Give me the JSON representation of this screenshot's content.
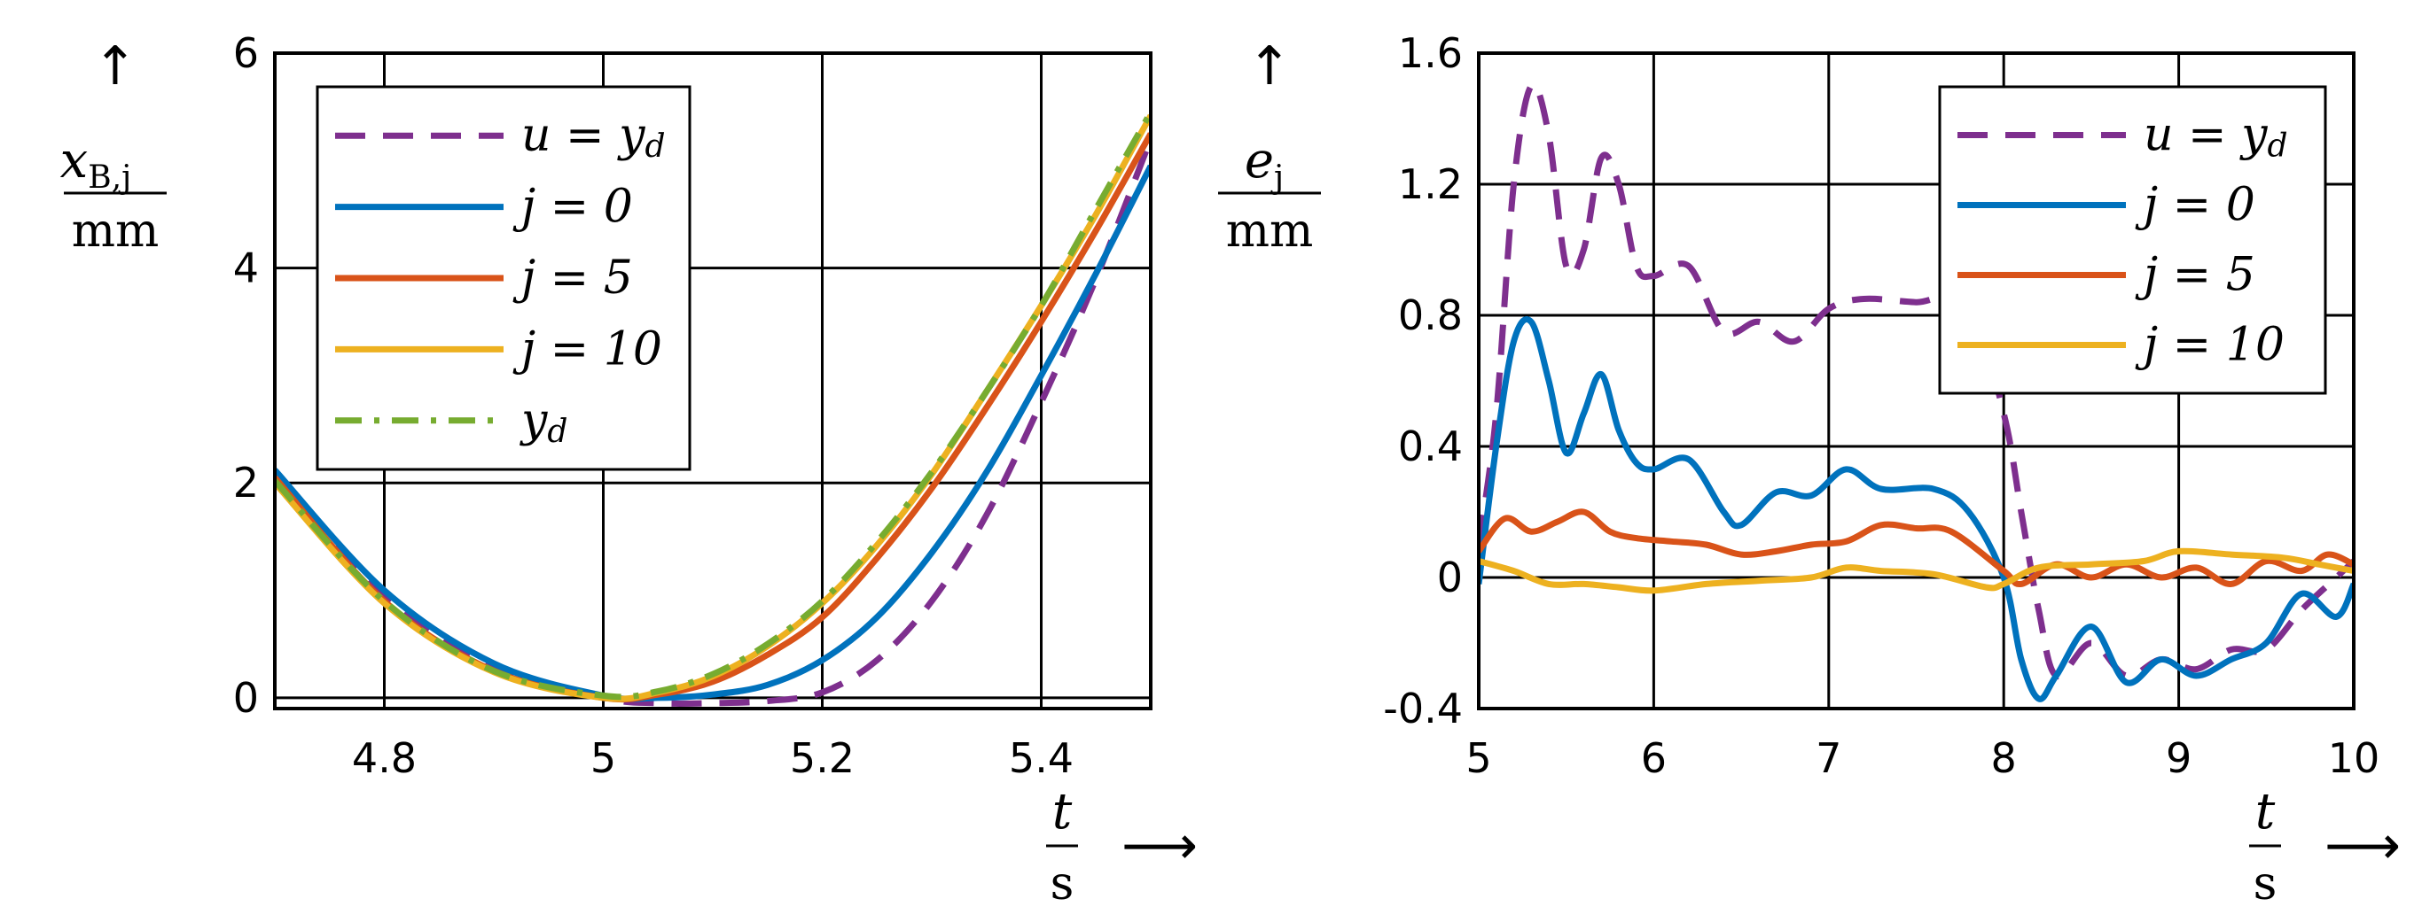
{
  "chart_data": [
    {
      "type": "line",
      "xlim": [
        4.7,
        5.5
      ],
      "ylim": [
        -0.1,
        6
      ],
      "xticks": [
        4.8,
        5,
        5.2,
        5.4
      ],
      "xtick_labels": [
        "4.8",
        "5",
        "5.2",
        "5.4"
      ],
      "yticks": [
        0,
        2,
        4,
        6
      ],
      "ytick_labels": [
        "0",
        "2",
        "4",
        "6"
      ],
      "ylabel_num": "x",
      "ylabel_sub": "B,j",
      "ylabel_den": "mm",
      "xlabel_num": "t",
      "xlabel_den": "s",
      "arrow_up": "↑",
      "arrow_right": "⟶",
      "grid": true,
      "legend_position": "top-left",
      "series": [
        {
          "name": "u = yd",
          "legend_main": "u = y",
          "legend_sub": "d",
          "color": "#7E2F8E",
          "dash": "dash",
          "x": [
            4.7,
            4.8,
            4.9,
            5.0,
            5.05,
            5.1,
            5.15,
            5.2,
            5.25,
            5.3,
            5.35,
            5.4,
            5.45,
            5.5
          ],
          "y": [
            2.1,
            0.95,
            0.3,
            0.0,
            -0.05,
            -0.05,
            -0.03,
            0.05,
            0.35,
            0.9,
            1.7,
            2.75,
            3.9,
            5.2
          ]
        },
        {
          "name": "j = 0",
          "legend_main": "j = 0",
          "legend_sub": "",
          "color": "#0072BD",
          "dash": "solid",
          "x": [
            4.7,
            4.8,
            4.9,
            5.0,
            5.05,
            5.1,
            5.15,
            5.2,
            5.25,
            5.3,
            5.35,
            5.4,
            5.45,
            5.5
          ],
          "y": [
            2.12,
            1.0,
            0.32,
            0.02,
            0.0,
            0.03,
            0.12,
            0.35,
            0.75,
            1.35,
            2.1,
            3.0,
            3.95,
            4.95
          ]
        },
        {
          "name": "j = 5",
          "legend_main": "j = 5",
          "legend_sub": "",
          "color": "#D95319",
          "dash": "solid",
          "x": [
            4.7,
            4.8,
            4.9,
            5.0,
            5.05,
            5.1,
            5.15,
            5.2,
            5.25,
            5.3,
            5.35,
            5.4,
            5.45,
            5.5
          ],
          "y": [
            2.05,
            0.9,
            0.25,
            0.0,
            0.03,
            0.15,
            0.4,
            0.75,
            1.3,
            1.95,
            2.7,
            3.5,
            4.35,
            5.25
          ]
        },
        {
          "name": "j = 10",
          "legend_main": "j = 10",
          "legend_sub": "",
          "color": "#EDB120",
          "dash": "solid",
          "x": [
            4.7,
            4.8,
            4.9,
            5.0,
            5.05,
            5.1,
            5.15,
            5.2,
            5.25,
            5.3,
            5.35,
            5.4,
            5.45,
            5.5
          ],
          "y": [
            2.0,
            0.88,
            0.24,
            0.0,
            0.05,
            0.2,
            0.48,
            0.88,
            1.42,
            2.08,
            2.85,
            3.65,
            4.5,
            5.42
          ]
        },
        {
          "name": "yd",
          "legend_main": "y",
          "legend_sub": "d",
          "color": "#77AC30",
          "dash": "dashdot",
          "x": [
            4.7,
            4.8,
            4.9,
            5.0,
            5.05,
            5.1,
            5.15,
            5.2,
            5.25,
            5.3,
            5.35,
            5.4,
            5.45,
            5.5
          ],
          "y": [
            2.02,
            0.9,
            0.25,
            0.02,
            0.06,
            0.22,
            0.5,
            0.9,
            1.45,
            2.1,
            2.85,
            3.65,
            4.55,
            5.45
          ]
        }
      ]
    },
    {
      "type": "line",
      "xlim": [
        5,
        10
      ],
      "ylim": [
        -0.4,
        1.6
      ],
      "xticks": [
        5,
        6,
        7,
        8,
        9,
        10
      ],
      "xtick_labels": [
        "5",
        "6",
        "7",
        "8",
        "9",
        "10"
      ],
      "yticks": [
        -0.4,
        0,
        0.4,
        0.8,
        1.2,
        1.6
      ],
      "ytick_labels": [
        "-0.4",
        "0",
        "0.4",
        "0.8",
        "1.2",
        "1.6"
      ],
      "ylabel_num": "e",
      "ylabel_sub": "j",
      "ylabel_den": "mm",
      "xlabel_num": "t",
      "xlabel_den": "s",
      "arrow_up": "↑",
      "arrow_right": "⟶",
      "grid": true,
      "legend_position": "top-right",
      "series": [
        {
          "name": "u = yd",
          "legend_main": "u = y",
          "legend_sub": "d",
          "color": "#7E2F8E",
          "dash": "dash",
          "x": [
            5.0,
            5.1,
            5.2,
            5.3,
            5.4,
            5.5,
            5.6,
            5.7,
            5.8,
            5.9,
            6.0,
            6.2,
            6.4,
            6.6,
            6.8,
            7.0,
            7.2,
            7.5,
            7.8,
            8.0,
            8.1,
            8.2,
            8.3,
            8.5,
            8.7,
            8.9,
            9.1,
            9.3,
            9.5,
            9.7,
            9.9,
            10.0
          ],
          "y": [
            0.1,
            0.5,
            1.2,
            1.5,
            1.35,
            0.95,
            1.0,
            1.28,
            1.2,
            0.95,
            0.92,
            0.95,
            0.75,
            0.78,
            0.72,
            0.82,
            0.85,
            0.84,
            0.84,
            0.5,
            0.2,
            -0.1,
            -0.3,
            -0.2,
            -0.3,
            -0.25,
            -0.28,
            -0.22,
            -0.22,
            -0.1,
            0.0,
            0.05
          ]
        },
        {
          "name": "j = 0",
          "legend_main": "j = 0",
          "legend_sub": "",
          "color": "#0072BD",
          "dash": "solid",
          "x": [
            5.0,
            5.1,
            5.2,
            5.3,
            5.4,
            5.5,
            5.6,
            5.7,
            5.8,
            5.9,
            6.0,
            6.2,
            6.4,
            6.5,
            6.7,
            6.9,
            7.1,
            7.3,
            7.6,
            7.8,
            8.0,
            8.1,
            8.2,
            8.3,
            8.5,
            8.7,
            8.9,
            9.1,
            9.3,
            9.5,
            9.7,
            9.9,
            10.0
          ],
          "y": [
            -0.02,
            0.4,
            0.72,
            0.78,
            0.6,
            0.38,
            0.5,
            0.62,
            0.45,
            0.35,
            0.33,
            0.36,
            0.2,
            0.16,
            0.26,
            0.25,
            0.33,
            0.27,
            0.27,
            0.2,
            0.0,
            -0.25,
            -0.37,
            -0.3,
            -0.15,
            -0.32,
            -0.25,
            -0.3,
            -0.25,
            -0.2,
            -0.05,
            -0.12,
            -0.02
          ]
        },
        {
          "name": "j = 5",
          "legend_main": "j = 5",
          "legend_sub": "",
          "color": "#D95319",
          "dash": "solid",
          "x": [
            5.0,
            5.15,
            5.3,
            5.45,
            5.6,
            5.75,
            5.9,
            6.1,
            6.3,
            6.5,
            6.7,
            6.9,
            7.1,
            7.3,
            7.5,
            7.7,
            8.0,
            8.1,
            8.3,
            8.5,
            8.7,
            8.9,
            9.1,
            9.3,
            9.5,
            9.7,
            9.85,
            10.0
          ],
          "y": [
            0.08,
            0.18,
            0.14,
            0.17,
            0.2,
            0.14,
            0.12,
            0.11,
            0.1,
            0.07,
            0.08,
            0.1,
            0.11,
            0.16,
            0.15,
            0.14,
            0.02,
            -0.02,
            0.04,
            0.0,
            0.04,
            0.0,
            0.03,
            -0.02,
            0.05,
            0.02,
            0.07,
            0.04
          ]
        },
        {
          "name": "j = 10",
          "legend_main": "j = 10",
          "legend_sub": "",
          "color": "#EDB120",
          "dash": "solid",
          "x": [
            5.0,
            5.2,
            5.4,
            5.6,
            5.8,
            6.0,
            6.3,
            6.6,
            6.9,
            7.1,
            7.3,
            7.6,
            7.9,
            8.0,
            8.2,
            8.5,
            8.8,
            9.0,
            9.3,
            9.6,
            9.8,
            10.0
          ],
          "y": [
            0.05,
            0.02,
            -0.02,
            -0.02,
            -0.03,
            -0.04,
            -0.02,
            -0.01,
            0.0,
            0.03,
            0.02,
            0.01,
            -0.03,
            -0.02,
            0.03,
            0.04,
            0.05,
            0.08,
            0.07,
            0.06,
            0.04,
            0.02
          ]
        }
      ]
    }
  ]
}
